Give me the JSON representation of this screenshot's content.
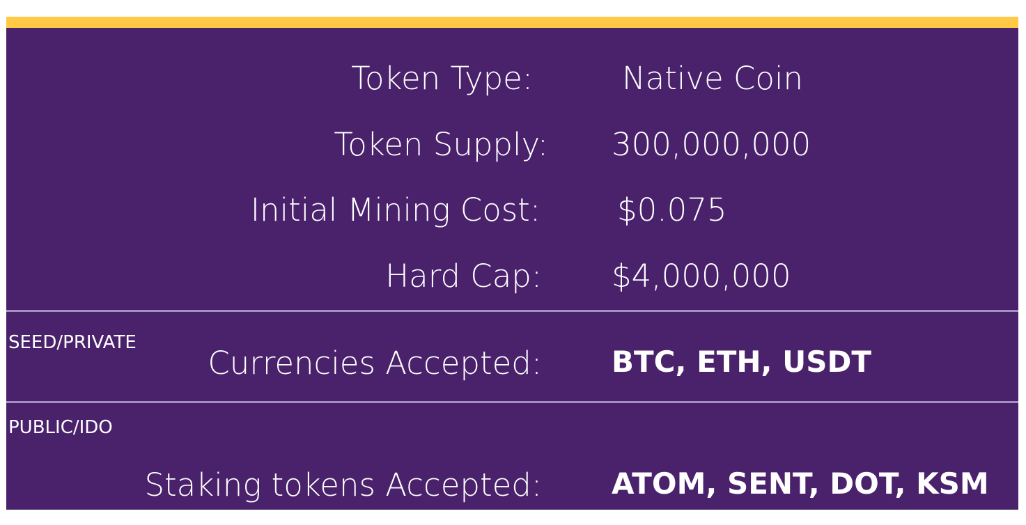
{
  "rows": [
    {
      "label": "Token Type:",
      "value": "Native Coin"
    },
    {
      "label": "Token Supply:",
      "value": "300,000,000"
    },
    {
      "label": "Initial Mining Cost:",
      "value": "$0.075"
    },
    {
      "label": "Hard Cap:",
      "value": "$4,000,000"
    }
  ],
  "seed_private": {
    "tag": "SEED/PRIVATE",
    "label": "Currencies Accepted:",
    "value": "BTC, ETH, USDT"
  },
  "public_ido": {
    "tag": "PUBLIC/IDO",
    "label": "Staking tokens Accepted:",
    "value": "ATOM, SENT, DOT, KSM"
  },
  "colors": {
    "accent_bar": "#FFC845",
    "panel_background": "#4A216B",
    "divider": "#A58EC2",
    "text": "#FFFFFF"
  }
}
